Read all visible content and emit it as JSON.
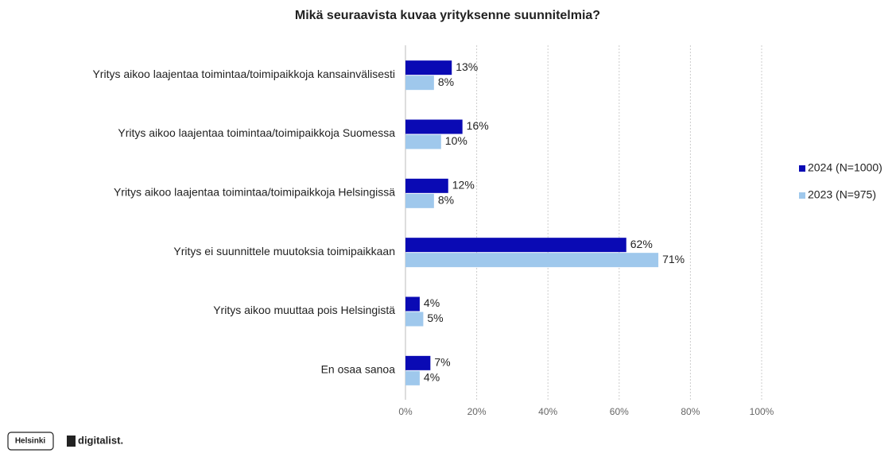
{
  "chart_data": {
    "type": "barh",
    "title": "Mikä seuraavista kuvaa yrityksenne suunnitelmia?",
    "categories": [
      "Yritys aikoo laajentaa toimintaa/toimipaikkoja kansainvälisesti",
      "Yritys aikoo laajentaa toimintaa/toimipaikkoja Suomessa",
      "Yritys aikoo laajentaa toimintaa/toimipaikkoja Helsingissä",
      "Yritys ei suunnittele muutoksia toimipaikkaan",
      "Yritys aikoo muuttaa pois Helsingistä",
      "En osaa sanoa"
    ],
    "series": [
      {
        "name": "2024 (N=1000)",
        "color": "#0a0ab4",
        "values": [
          13,
          16,
          12,
          62,
          4,
          7
        ],
        "value_labels": [
          "13%",
          "16%",
          "12%",
          "62%",
          "4%",
          "7%"
        ]
      },
      {
        "name": "2023 (N=975)",
        "color": "#9fc8ec",
        "values": [
          8,
          10,
          8,
          71,
          5,
          4
        ],
        "value_labels": [
          "8%",
          "10%",
          "8%",
          "71%",
          "5%",
          "4%"
        ]
      }
    ],
    "xlim": [
      0,
      100
    ],
    "xticks": [
      {
        "value": 0,
        "label": "0%"
      },
      {
        "value": 20,
        "label": "20%"
      },
      {
        "value": 40,
        "label": "40%"
      },
      {
        "value": 60,
        "label": "60%"
      },
      {
        "value": 80,
        "label": "80%"
      },
      {
        "value": 100,
        "label": "100%"
      }
    ],
    "grid": true,
    "legend": "right"
  },
  "footer": {
    "logos": [
      "Helsinki",
      "digitalist."
    ]
  }
}
